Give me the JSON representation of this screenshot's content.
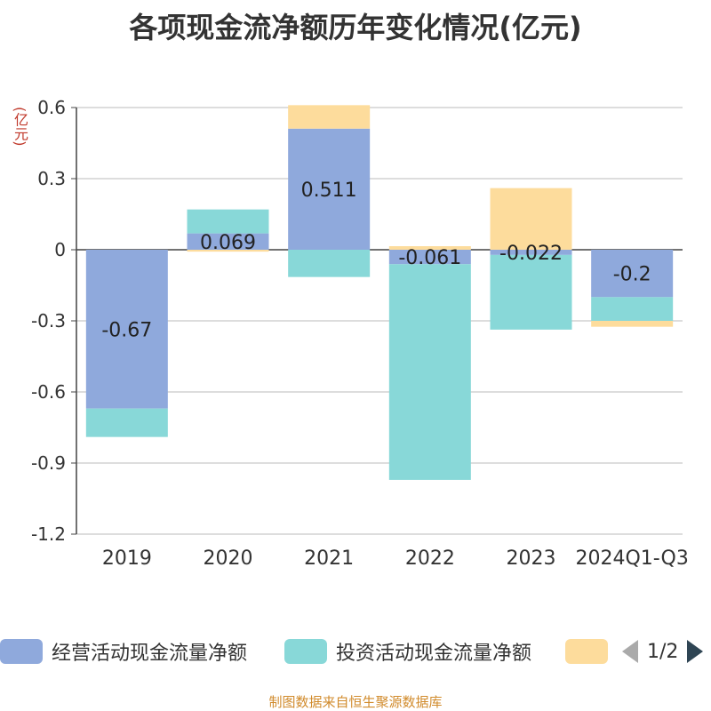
{
  "chart_data": {
    "type": "bar",
    "stacked": true,
    "title": "各项现金流净额历年变化情况(亿元)",
    "ylabel": "(亿元)",
    "categories": [
      "2019",
      "2020",
      "2021",
      "2022",
      "2023",
      "2024Q1-Q3"
    ],
    "ylim": [
      -1.2,
      0.6
    ],
    "yticks": [
      0.6,
      0.3,
      0,
      -0.3,
      -0.6,
      -0.9,
      -1.2
    ],
    "grid": true,
    "legend_position": "bottom",
    "series": [
      {
        "name": "经营活动现金流量净额",
        "color": "#8fa9dc",
        "values": [
          -0.67,
          0.069,
          0.511,
          -0.061,
          -0.022,
          -0.2
        ],
        "labels": [
          "-0.67",
          "0.069",
          "0.511",
          "-0.061",
          "-0.022",
          "-0.2"
        ]
      },
      {
        "name": "投资活动现金流量净额",
        "color": "#88d8d8",
        "values": [
          -0.12,
          0.101,
          -0.115,
          -0.91,
          -0.315,
          -0.1
        ]
      },
      {
        "name": "",
        "color": "#fddc9c",
        "values": [
          0.0,
          -0.008,
          0.099,
          0.015,
          0.26,
          -0.025
        ]
      }
    ]
  },
  "legend": {
    "items": [
      {
        "label": "经营活动现金流量净额",
        "color": "#8fa9dc"
      },
      {
        "label": "投资活动现金流量净额",
        "color": "#88d8d8"
      },
      {
        "label": "",
        "color": "#fddc9c"
      }
    ],
    "page_text": "1/2"
  },
  "footer": "制图数据来自恒生聚源数据库"
}
